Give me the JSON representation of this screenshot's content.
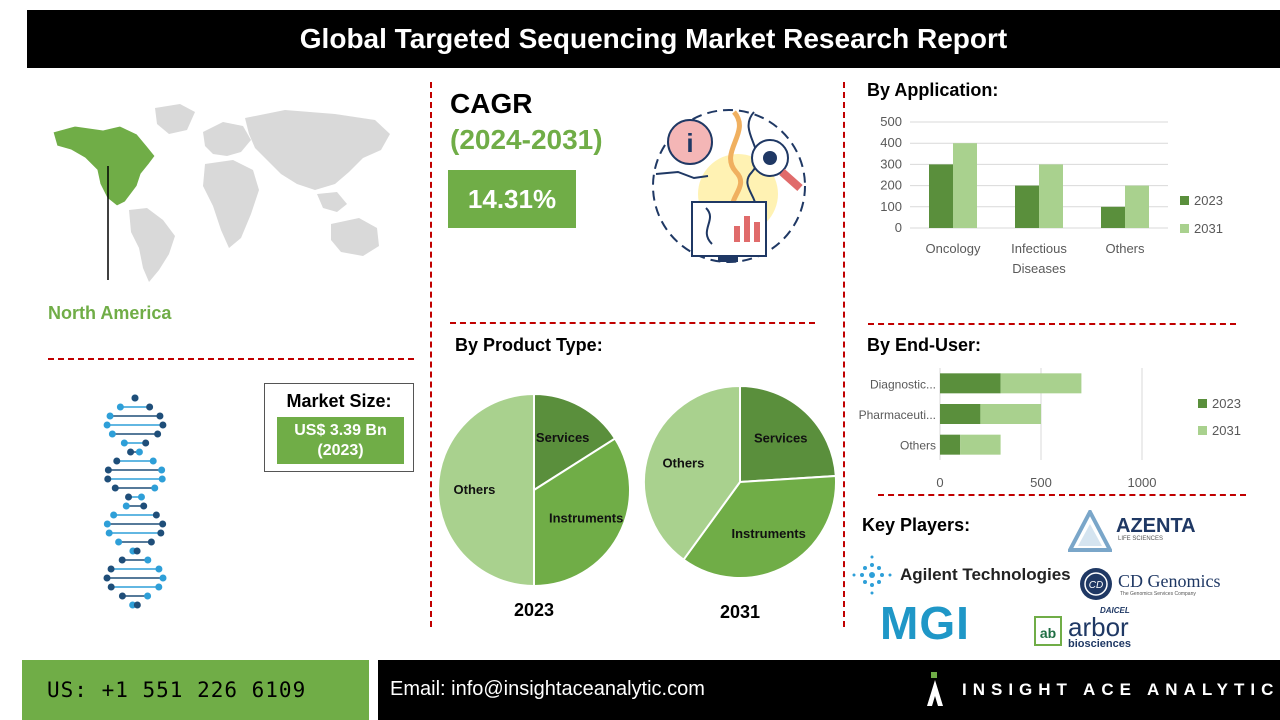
{
  "header": {
    "title": "Global Targeted Sequencing Market Research Report"
  },
  "region": {
    "label": "North America"
  },
  "market_size": {
    "title": "Market Size:",
    "value_line1": "US$ 3.39 Bn",
    "value_line2": "(2023)"
  },
  "cagr": {
    "title": "CAGR",
    "period": "(2024-2031)",
    "value": "14.31%"
  },
  "sections": {
    "application": "By Application:",
    "product_type": "By Product Type:",
    "end_user": "By End-User:",
    "key_players": "Key Players:"
  },
  "colors": {
    "green_dark": "#5a8f3c",
    "green_mid": "#70ad47",
    "green_light": "#a9d18e",
    "red_dash": "#c00000",
    "dna_dark": "#1f4e79",
    "dna_light": "#2e9fd8"
  },
  "chart_data": [
    {
      "type": "bar",
      "categories": [
        "Oncology",
        "Infectious Diseases",
        "Others"
      ],
      "category_lines": [
        [
          "Oncology"
        ],
        [
          "Infectious",
          "Diseases"
        ],
        [
          "Others"
        ]
      ],
      "series": [
        {
          "name": "2023",
          "values": [
            300,
            200,
            100
          ]
        },
        {
          "name": "2031",
          "values": [
            400,
            300,
            200
          ]
        }
      ],
      "ylim": [
        0,
        500
      ],
      "yticks": [
        "0",
        "100",
        "200",
        "300",
        "400",
        "500"
      ],
      "grid": true,
      "legend": "right"
    },
    {
      "type": "pie",
      "title": "2023",
      "labels": [
        "Services",
        "Instruments",
        "Others"
      ],
      "values": [
        16,
        34,
        50
      ]
    },
    {
      "type": "pie",
      "title": "2031",
      "labels": [
        "Services",
        "Instruments",
        "Others"
      ],
      "values": [
        24,
        36,
        40
      ]
    },
    {
      "type": "bar",
      "orientation": "horizontal",
      "stacked": true,
      "categories": [
        "Diagnostic...",
        "Pharmaceuti...",
        "Others"
      ],
      "series": [
        {
          "name": "2023",
          "values": [
            300,
            200,
            100
          ]
        },
        {
          "name": "2031",
          "values": [
            400,
            300,
            200
          ]
        }
      ],
      "xlim": [
        0,
        1000
      ],
      "xticks": [
        "0",
        "500",
        "1000"
      ],
      "grid": true,
      "legend": "right"
    }
  ],
  "players": {
    "agilent": "Agilent Technologies",
    "azenta": "AZENTA",
    "azenta_sub": "LIFE SCIENCES",
    "cd": "CD Genomics",
    "cd_sub": "The Genomics Services Company",
    "mgi": "MGI",
    "arbor": "arbor",
    "arbor_sub": "biosciences",
    "daicel": "DAICEL"
  },
  "footer": {
    "phone": "US: +1 551 226 6109",
    "email": "Email: info@insightaceanalytic.com",
    "brand": "INSIGHT ACE ANALYTIC"
  }
}
